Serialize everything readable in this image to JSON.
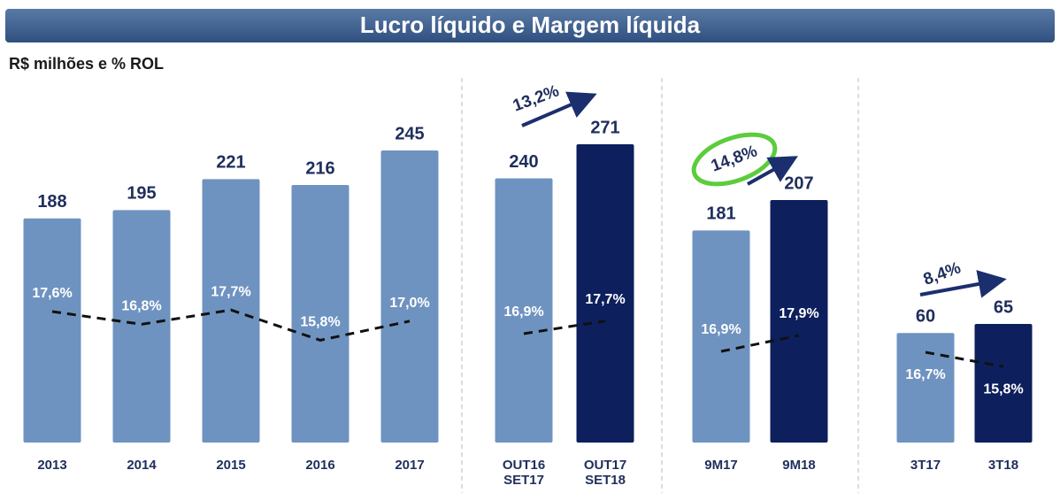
{
  "chart_data": {
    "type": "bar",
    "title": "Lucro líquido e Margem líquida",
    "subtitle": "R$ milhões e % ROL",
    "groups": [
      {
        "categories": [
          "2013",
          "2014",
          "2015",
          "2016",
          "2017"
        ],
        "values": [
          188,
          195,
          221,
          216,
          245
        ],
        "colors": [
          "#6f93c0",
          "#6f93c0",
          "#6f93c0",
          "#6f93c0",
          "#6f93c0"
        ],
        "margins": [
          17.6,
          16.8,
          17.7,
          15.8,
          17.0
        ],
        "margin_labels": [
          "17,6%",
          "16,8%",
          "17,7%",
          "15,8%",
          "17,0%"
        ]
      },
      {
        "categories": [
          "OUT16 SET17",
          "OUT17 SET18"
        ],
        "values": [
          240,
          271
        ],
        "colors": [
          "#6f93c0",
          "#0d1f5c"
        ],
        "margins": [
          16.9,
          17.7
        ],
        "margin_labels": [
          "16,9%",
          "17,7%"
        ],
        "annotation": "13,2%"
      },
      {
        "categories": [
          "9M17",
          "9M18"
        ],
        "values": [
          181,
          207
        ],
        "colors": [
          "#6f93c0",
          "#0d1f5c"
        ],
        "margins": [
          16.9,
          17.9
        ],
        "margin_labels": [
          "16,9%",
          "17,9%"
        ],
        "annotation": "14,8%"
      },
      {
        "categories": [
          "3T17",
          "3T18"
        ],
        "values": [
          60,
          65
        ],
        "colors": [
          "#6f93c0",
          "#0d1f5c"
        ],
        "margins": [
          16.7,
          15.8
        ],
        "margin_labels": [
          "16,7%",
          "15,8%"
        ],
        "annotation": "8,4%"
      }
    ]
  }
}
